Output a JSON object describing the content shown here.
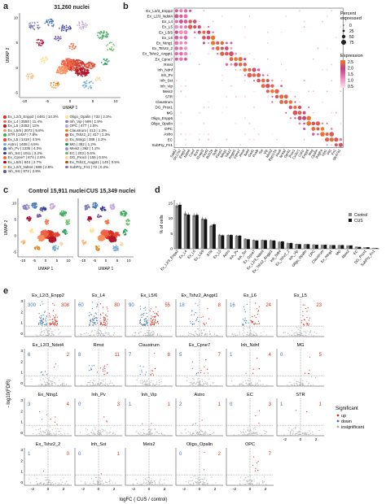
{
  "panel_a": {
    "label": "a",
    "title": "31,260 nuclei",
    "xlabel": "UMAP 1",
    "ylabel": "UMAP 2",
    "xticks": [
      "-10",
      "-5",
      "0",
      "5",
      "10"
    ],
    "yticks": [
      "10",
      "5",
      "0",
      "-5"
    ],
    "legend": [
      {
        "text": "Ex_L2/3_Enpp2 | 4481 | 14.3%",
        "color": "#d7301f"
      },
      {
        "text": "Ex_L4 | 3558 | 11.4%",
        "color": "#ef6548"
      },
      {
        "text": "Ex_L6 | 3452 | 11%",
        "color": "#b2182b"
      },
      {
        "text": "Ex_L5/6 | 3072 | 9.8%",
        "color": "#fc8d59"
      },
      {
        "text": "STR | 2437 | 7.8%",
        "color": "#41ab5d"
      },
      {
        "text": "Ex_L5 | 1418 | 4.5%",
        "color": "#e34a33"
      },
      {
        "text": "Astro | 1408 | 4.5%",
        "color": "#74add1"
      },
      {
        "text": "Inh_Pv | 1336 | 4.3%",
        "color": "#4575b4"
      },
      {
        "text": "Inh_Sst | 1011 | 3.2%",
        "color": "#313695"
      },
      {
        "text": "Ex_Cpne7 | 874 | 2.8%",
        "color": "#f46d43"
      },
      {
        "text": "Ex_L5/6 | 844 | 2.7%",
        "color": "#a50026"
      },
      {
        "text": "Ex_L2/3_Ndst4 | 889 | 2.8%",
        "color": "#fdae61"
      },
      {
        "text": "Inh_Sst | 872 | 2.8%",
        "color": "#6a51a3"
      },
      {
        "text": "Oligo_Opalin | 732 | 2.3%",
        "color": "#fee090"
      },
      {
        "text": "Inh_Vip | 599 | 1.9%",
        "color": "#807dba"
      },
      {
        "text": "OPC | 477 | 1.5%",
        "color": "#c2a5cf"
      },
      {
        "text": "Claustrum | 413 | 1.3%",
        "color": "#e08214"
      },
      {
        "text": "Ex_Tshz2_2 | 417 | 1.3%",
        "color": "#d6604d"
      },
      {
        "text": "Ex_Ntng1 | 388 | 1.2%",
        "color": "#f4a582"
      },
      {
        "text": "MG | 382 | 1.2%",
        "color": "#1a9850"
      },
      {
        "text": "Meis2 | 362 | 1.2%",
        "color": "#9e9ac8"
      },
      {
        "text": "EC | 203 | 0.6%",
        "color": "#66bd63"
      },
      {
        "text": "DG_Prox1 | 155 | 0.5%",
        "color": "#fdd49e"
      },
      {
        "text": "Ex_Tshz2_Angpt1 | 145 | 0.5%",
        "color": "#b35806"
      },
      {
        "text": "SubPry_Fn1 | 72 | 0.2%",
        "color": "#8073ac"
      }
    ]
  },
  "panel_b": {
    "label": "b",
    "rows": [
      "Ex_L2/3_Enpp2",
      "Ex_L2/3_Ndst4",
      "Ex_L4",
      "Ex_L5",
      "Ex_L5/6",
      "Ex_L6",
      "Ex_Ntng1",
      "Ex_Tshz2_2",
      "Ex_Tshz2_Angpt1",
      "Ex_Cpne7",
      "Rmst",
      "Inh_Ndnf",
      "Inh_Pv",
      "Inh_Sst",
      "Inh_Vip",
      "Meis2",
      "STR",
      "Claustrum",
      "DG_Prox1",
      "MG",
      "Oligo_Enpp6",
      "Oligo_Opalin",
      "OPC",
      "Astro",
      "EC",
      "SubPry_Fn1"
    ],
    "genes": [
      "Satb2",
      "Slc17a7",
      "Enpp2",
      "Ndst4",
      "Cux2",
      "Rorb",
      "Il1rapl2",
      "Fezf2",
      "Bcl11b",
      "Syt6",
      "Foxp2",
      "Ntng1",
      "Tshz2",
      "Angpt1",
      "Cpne7",
      "Rmst",
      "Ndnf",
      "Gad1",
      "Pvalb",
      "Sst",
      "Vip",
      "Meis2",
      "Ppp1r1b",
      "Penk",
      "Nr4a2",
      "Oprk1",
      "Prox1",
      "Cx3cr1",
      "Csf1r",
      "Enpp6",
      "Mog",
      "Opalin",
      "Pdgfra",
      "Gja1",
      "Flt1",
      "Fn1",
      "Slc47a1"
    ],
    "legend_size_title": "Percent expressed",
    "legend_size_values": [
      "0",
      "25",
      "50",
      "75"
    ],
    "legend_color_title": "Expression",
    "legend_color_values": [
      "2.5",
      "2.0",
      "1.5",
      "1.0",
      "0.5"
    ]
  },
  "panel_c": {
    "label": "c",
    "title_left": "Control 15,911 nuclei",
    "title_right": "CUS 15,349 nuclei",
    "xlabel": "UMAP 1",
    "ylabel": "UMAP 2",
    "xticks": [
      "-10",
      "-5",
      "0",
      "5",
      "10"
    ],
    "yticks": [
      "10",
      "5",
      "0",
      "-5"
    ]
  },
  "panel_d": {
    "label": "d",
    "ylabel": "% of cells",
    "yticks": [
      "0",
      "5",
      "10",
      "15"
    ],
    "legend": [
      {
        "text": "Control",
        "color": "#888888"
      },
      {
        "text": "CUS",
        "color": "#111111"
      }
    ]
  },
  "chart_data": {
    "type": "bar",
    "categories": [
      "Ex_L2/3_Enpp2",
      "Ex_L4",
      "Ex_L6",
      "Ex_L5/6",
      "STR",
      "Ex_L5",
      "Astro",
      "Inh_Pv",
      "Inh_Sst",
      "Ex_Cpne7",
      "Ex_L2/3_Ndst4",
      "Ex_Tshz2_Angpt1",
      "Inh_Ndnf",
      "Ex_Tshz2_2",
      "Inh_Vip",
      "Oligo_Opalin",
      "OPC",
      "Claustrum",
      "Ex_Ntng1",
      "MG",
      "Meis2",
      "EC",
      "DG_Prox1",
      "SubPry_Fn1"
    ],
    "series": [
      {
        "name": "Control",
        "values": [
          14.2,
          11.6,
          11.0,
          9.9,
          7.6,
          4.6,
          4.5,
          4.3,
          3.3,
          2.9,
          2.9,
          2.8,
          2.3,
          1.9,
          1.6,
          1.5,
          1.4,
          1.3,
          1.2,
          1.2,
          1.1,
          0.7,
          0.5,
          0.3
        ]
      },
      {
        "name": "CUS",
        "values": [
          14.4,
          11.2,
          11.1,
          9.7,
          8.0,
          4.4,
          4.5,
          4.3,
          3.1,
          2.7,
          2.8,
          2.7,
          2.4,
          1.9,
          1.5,
          1.5,
          1.3,
          1.3,
          1.2,
          1.2,
          1.1,
          0.6,
          0.5,
          0.2
        ]
      }
    ],
    "ylim": [
      0,
      16
    ],
    "ylabel": "% of cells"
  },
  "panel_e": {
    "label": "e",
    "xlabel": "logFC ( CUS / control)",
    "ylabel": "- log10(FDR)",
    "legend_title": "Significant",
    "legend_items": [
      {
        "text": "up",
        "color": "#d7301f"
      },
      {
        "text": "down",
        "color": "#4575b4"
      },
      {
        "text": "insignificant",
        "color": "#aaaaaa"
      }
    ],
    "cells": [
      {
        "name": "Ex_L2/3_Enpp2",
        "down": "300",
        "up": "308",
        "row": 0,
        "col": 0,
        "yticks": [
          "3",
          "2",
          "1",
          "0"
        ]
      },
      {
        "name": "Ex_L4",
        "down": "60",
        "up": "80",
        "row": 0,
        "col": 1
      },
      {
        "name": "Ex_L5/6",
        "down": "90",
        "up": "55",
        "row": 0,
        "col": 2
      },
      {
        "name": "Ex_Tshz2_Angpt1",
        "down": "18",
        "up": "8",
        "row": 0,
        "col": 3
      },
      {
        "name": "Ex_L6",
        "down": "16",
        "up": "24",
        "row": 0,
        "col": 4
      },
      {
        "name": "Ex_L5",
        "down": "",
        "up": "23",
        "row": 0,
        "col": 5
      },
      {
        "name": "Ex_L2/3_Ndst4",
        "down": "6",
        "up": "2",
        "row": 1,
        "col": 0,
        "yticks": [
          "3",
          "2",
          "1",
          "0"
        ]
      },
      {
        "name": "Rmst",
        "down": "8",
        "up": "11",
        "row": 1,
        "col": 1
      },
      {
        "name": "Claustrum",
        "down": "7",
        "up": "8",
        "row": 1,
        "col": 2
      },
      {
        "name": "Ex_Cpne7",
        "down": "5",
        "up": "7",
        "row": 1,
        "col": 3
      },
      {
        "name": "Inh_Ndnf",
        "down": "1",
        "up": "4",
        "row": 1,
        "col": 4
      },
      {
        "name": "MG",
        "down": "0",
        "up": "5",
        "row": 1,
        "col": 5
      },
      {
        "name": "Ex_Ntng1",
        "down": "3",
        "up": "4",
        "row": 2,
        "col": 0,
        "yticks": [
          "3",
          "2",
          "1",
          "0"
        ]
      },
      {
        "name": "Inh_Pv",
        "down": "0",
        "up": "3",
        "row": 2,
        "col": 1
      },
      {
        "name": "Inh_Vip",
        "down": "1",
        "up": "1",
        "row": 2,
        "col": 2
      },
      {
        "name": "Astro",
        "down": "2",
        "up": "1",
        "row": 2,
        "col": 3
      },
      {
        "name": "EC",
        "down": "0",
        "up": "3",
        "row": 2,
        "col": 4
      },
      {
        "name": "STR",
        "down": "1",
        "up": "1",
        "row": 2,
        "col": 5,
        "xticks": [
          "-2",
          "0",
          "2"
        ]
      },
      {
        "name": "Ex_Tshz2_2",
        "down": "1",
        "up": "0",
        "row": 3,
        "col": 0,
        "yticks": [
          "3",
          "2",
          "1",
          "0"
        ],
        "xticks": [
          "-2",
          "0",
          "2"
        ]
      },
      {
        "name": "Inh_Sst",
        "down": "0",
        "up": "1",
        "row": 3,
        "col": 1,
        "xticks": [
          "-2",
          "0",
          "2"
        ]
      },
      {
        "name": "Meis2",
        "down": "",
        "up": "",
        "row": 3,
        "col": 2,
        "xticks": [
          "-2",
          "0",
          "2"
        ]
      },
      {
        "name": "Oligo_Opalin",
        "down": "0",
        "up": "2",
        "row": 3,
        "col": 3,
        "xticks": [
          "-2",
          "0",
          "2"
        ]
      },
      {
        "name": "OPC",
        "down": "",
        "up": "7",
        "row": 3,
        "col": 4,
        "xticks": [
          "-2",
          "0",
          "2"
        ]
      }
    ]
  }
}
